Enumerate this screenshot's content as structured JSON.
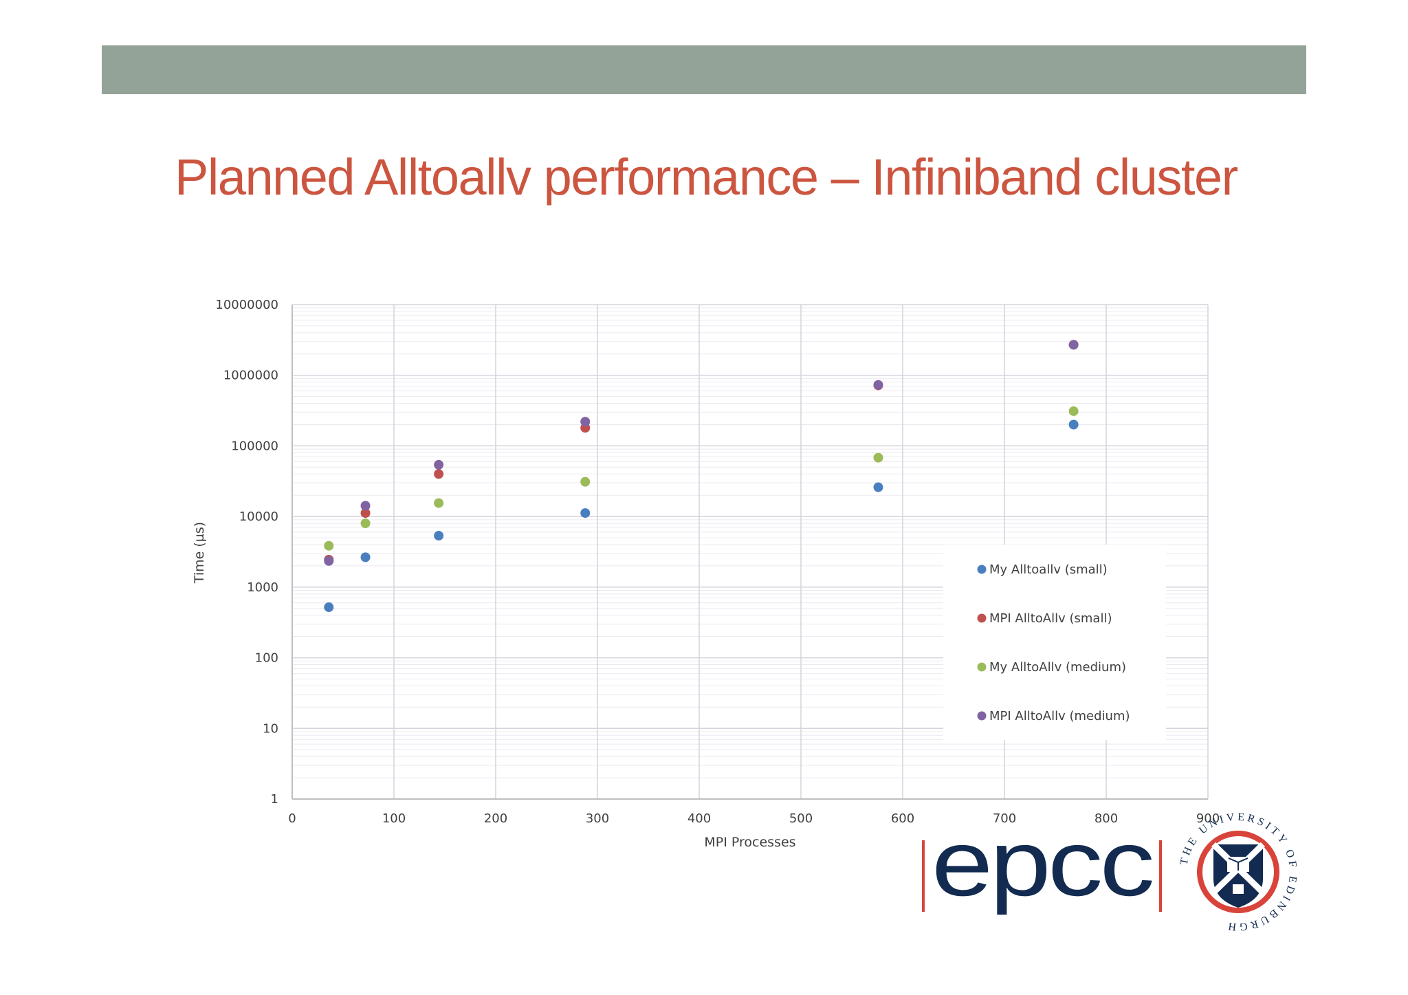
{
  "slide": {
    "title": "Planned Alltoallv performance – Infiniband cluster"
  },
  "chart_data": {
    "type": "scatter",
    "title": "",
    "xlabel": "MPI Processes",
    "ylabel": "Time (µs)",
    "x_scale": "linear",
    "y_scale": "log",
    "xlim": [
      0,
      900
    ],
    "ylim": [
      1,
      10000000
    ],
    "x_ticks": [
      0,
      100,
      200,
      300,
      400,
      500,
      600,
      700,
      800,
      900
    ],
    "y_ticks": [
      1,
      10,
      100,
      1000,
      10000,
      100000,
      1000000,
      10000000
    ],
    "x_tick_labels": [
      "0",
      "100",
      "200",
      "300",
      "400",
      "500",
      "600",
      "700",
      "800",
      "900"
    ],
    "y_tick_labels": [
      "1",
      "10",
      "100",
      "1000",
      "10000",
      "100000",
      "1000000",
      "10000000"
    ],
    "grid": true,
    "legend_position": "right-middle",
    "series": [
      {
        "name": "My Alltoallv (small)",
        "color": "#4a7fbf",
        "points": [
          [
            36,
            520
          ],
          [
            72,
            2650
          ],
          [
            144,
            5350
          ],
          [
            288,
            11200
          ],
          [
            576,
            26000
          ],
          [
            768,
            200000
          ]
        ]
      },
      {
        "name": "MPI AlltoAllv (small)",
        "color": "#c0504d",
        "points": [
          [
            36,
            2450
          ],
          [
            72,
            11200
          ],
          [
            144,
            40000
          ],
          [
            288,
            180000
          ],
          [
            576,
            720000
          ],
          [
            768,
            2700000
          ]
        ]
      },
      {
        "name": "My AlltoAllv (medium)",
        "color": "#9bbb59",
        "points": [
          [
            36,
            3850
          ],
          [
            72,
            8000
          ],
          [
            144,
            15500
          ],
          [
            288,
            31000
          ],
          [
            576,
            68000
          ],
          [
            768,
            310000
          ]
        ]
      },
      {
        "name": "MPI AlltoAllv (medium)",
        "color": "#8064a2",
        "points": [
          [
            36,
            2350
          ],
          [
            72,
            14200
          ],
          [
            144,
            54000
          ],
          [
            288,
            220000
          ],
          [
            576,
            730000
          ],
          [
            768,
            2700000
          ]
        ]
      }
    ]
  },
  "logos": {
    "epcc_text": "epcc",
    "university_ring_text": "THE UNIVERSITY OF EDINBURGH"
  }
}
